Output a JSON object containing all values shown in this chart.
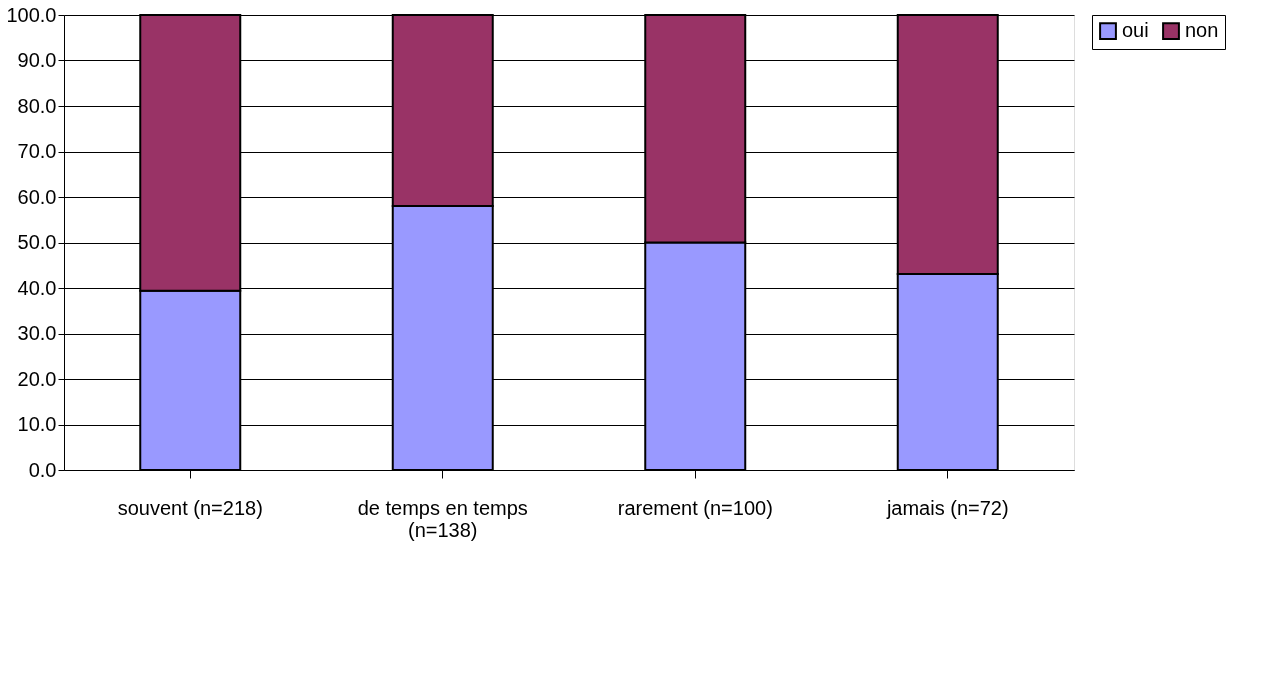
{
  "chart_data": {
    "type": "bar",
    "stacked": true,
    "categories": [
      "souvent (n=218)",
      "de temps en temps\n(n=138)",
      "rarement (n=100)",
      "jamais (n=72)"
    ],
    "series": [
      {
        "name": "oui",
        "color": "#9999ff",
        "values": [
          39.4,
          58.0,
          50.0,
          43.1
        ]
      },
      {
        "name": "non",
        "color": "#993366",
        "values": [
          60.6,
          42.0,
          50.0,
          56.9
        ]
      }
    ],
    "ylim": [
      0,
      100
    ],
    "yticks": [
      {
        "value": 0,
        "label": "0.0"
      },
      {
        "value": 10,
        "label": "10.0"
      },
      {
        "value": 20,
        "label": "20.0"
      },
      {
        "value": 30,
        "label": "30.0"
      },
      {
        "value": 40,
        "label": "40.0"
      },
      {
        "value": 50,
        "label": "50.0"
      },
      {
        "value": 60,
        "label": "60.0"
      },
      {
        "value": 70,
        "label": "70.0"
      },
      {
        "value": 80,
        "label": "80.0"
      },
      {
        "value": 90,
        "label": "90.0"
      },
      {
        "value": 100,
        "label": "100.0"
      }
    ],
    "grid": "y",
    "legend": "right"
  }
}
